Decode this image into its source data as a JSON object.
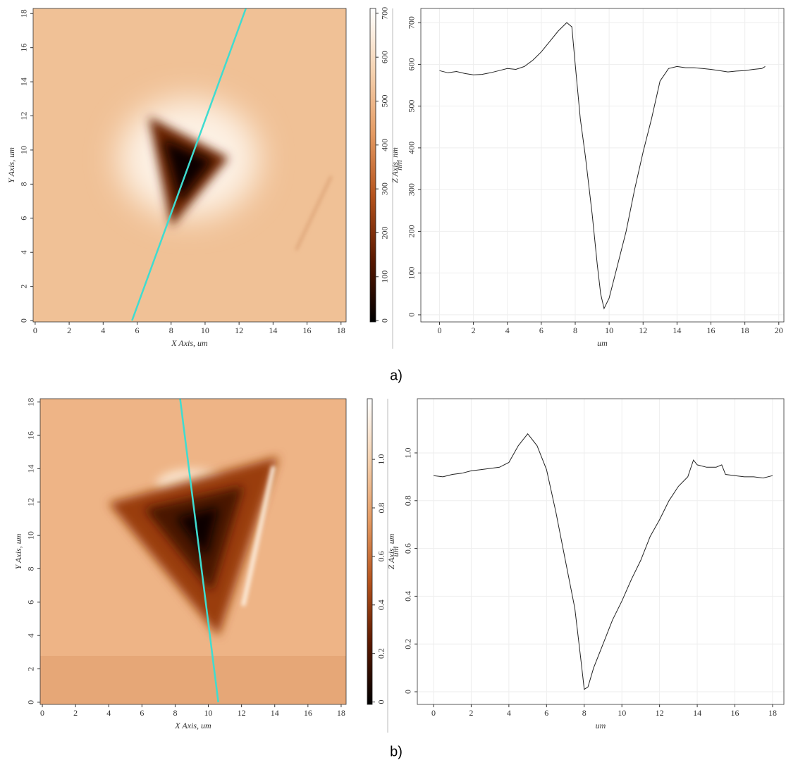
{
  "chart_data": [
    {
      "type": "image",
      "xlabel": "X Axis, um",
      "ylabel": "Y Axis, um",
      "xlim": [
        -0.12,
        18.3
      ],
      "ylim": [
        -0.08,
        18.3
      ],
      "xticks": [
        0,
        2,
        4,
        6,
        8,
        10,
        12,
        14,
        16,
        18
      ],
      "yticks": [
        0,
        2,
        4,
        6,
        8,
        10,
        12,
        14,
        16,
        18
      ],
      "profile_line": {
        "x": [
          5.7,
          12.4
        ],
        "y": [
          0,
          18.3
        ],
        "color": "#3fdcd0"
      }
    },
    {
      "type": "colorbar",
      "ylabel": "Z Axis, nm",
      "ylim": [
        -3,
        711
      ],
      "yticks": [
        0,
        100,
        200,
        300,
        400,
        500,
        600,
        700
      ],
      "colors": [
        "#000000",
        "#5a1800",
        "#b4521c",
        "#e49a62",
        "#f5d2b0",
        "#ffffff"
      ]
    },
    {
      "type": "line",
      "xlabel": "um",
      "ylabel": "nm",
      "grid": true,
      "color": "#222222",
      "xlim": [
        -1.1,
        20.3
      ],
      "ylim": [
        -17,
        734
      ],
      "xticks": [
        0,
        2,
        4,
        6,
        8,
        10,
        12,
        14,
        16,
        18,
        20
      ],
      "yticks": [
        0,
        100,
        200,
        300,
        400,
        500,
        600,
        700
      ],
      "x": [
        0,
        0.5,
        1,
        1.5,
        2,
        2.5,
        3,
        3.5,
        4,
        4.5,
        5,
        5.5,
        6,
        6.5,
        7,
        7.5,
        7.8,
        8,
        8.3,
        8.6,
        9,
        9.3,
        9.5,
        9.7,
        10,
        10.5,
        11,
        11.5,
        12,
        12.5,
        13,
        13.5,
        14,
        14.5,
        15,
        15.5,
        16,
        16.5,
        17,
        17.5,
        18,
        18.5,
        19,
        19.2
      ],
      "values": [
        585,
        580,
        583,
        578,
        575,
        576,
        580,
        585,
        590,
        588,
        595,
        610,
        630,
        655,
        680,
        700,
        690,
        600,
        470,
        380,
        240,
        120,
        50,
        15,
        40,
        120,
        200,
        300,
        390,
        470,
        560,
        590,
        595,
        592,
        592,
        590,
        588,
        585,
        582,
        584,
        585,
        588,
        590,
        595
      ]
    },
    {
      "type": "image",
      "xlabel": "X Axis, um",
      "ylabel": "Y Axis, um",
      "xlim": [
        -0.13,
        18.3
      ],
      "ylim": [
        -0.13,
        18.2
      ],
      "xticks": [
        0,
        2,
        4,
        6,
        8,
        10,
        12,
        14,
        16,
        18
      ],
      "yticks": [
        0,
        2,
        4,
        6,
        8,
        10,
        12,
        14,
        16,
        18
      ],
      "profile_line": {
        "x": [
          8.3,
          10.6
        ],
        "y": [
          18.2,
          0
        ],
        "color": "#3fdcd0"
      }
    },
    {
      "type": "colorbar",
      "ylabel": "Z Axis, um",
      "ylim": [
        -0.01,
        1.25
      ],
      "yticks": [
        0,
        0.2,
        0.4,
        0.6,
        0.8,
        {
          "value": 1,
          "label": "1.0"
        }
      ],
      "colors": [
        "#000000",
        "#5a1800",
        "#b4521c",
        "#e49a62",
        "#f5d2b0",
        "#ffffff"
      ]
    },
    {
      "type": "line",
      "xlabel": "um",
      "ylabel": "um",
      "grid": true,
      "color": "#222222",
      "xlim": [
        -0.86,
        18.6
      ],
      "ylim": [
        -0.053,
        1.227
      ],
      "xticks": [
        0,
        2,
        4,
        6,
        8,
        10,
        12,
        14,
        16,
        18
      ],
      "yticks": [
        0,
        0.2,
        0.4,
        0.6,
        0.8,
        {
          "value": 1,
          "label": "1.0"
        }
      ],
      "x": [
        0,
        0.5,
        1,
        1.5,
        2,
        2.5,
        3,
        3.5,
        4,
        4.5,
        5,
        5.5,
        6,
        6.5,
        7,
        7.5,
        7.8,
        8,
        8.2,
        8.5,
        9,
        9.5,
        10,
        10.5,
        11,
        11.5,
        12,
        12.5,
        13,
        13.5,
        13.8,
        14,
        14.5,
        15,
        15.3,
        15.5,
        16,
        16.5,
        17,
        17.5,
        18
      ],
      "values": [
        0.905,
        0.9,
        0.91,
        0.915,
        0.925,
        0.93,
        0.935,
        0.94,
        0.96,
        1.03,
        1.08,
        1.03,
        0.93,
        0.75,
        0.55,
        0.35,
        0.15,
        0.01,
        0.02,
        0.1,
        0.2,
        0.3,
        0.38,
        0.47,
        0.55,
        0.65,
        0.72,
        0.8,
        0.86,
        0.9,
        0.97,
        0.95,
        0.94,
        0.94,
        0.95,
        0.91,
        0.905,
        0.9,
        0.9,
        0.895,
        0.905
      ]
    }
  ],
  "captions": [
    "a)",
    "b)"
  ]
}
